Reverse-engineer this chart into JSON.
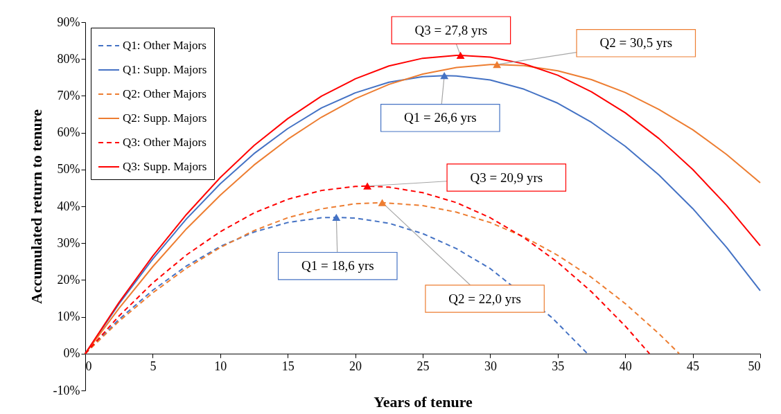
{
  "chart_data": {
    "type": "line",
    "xlabel": "Years of tenure",
    "ylabel": "Accumulated return to tenure",
    "xlim": [
      0,
      50
    ],
    "xticks": [
      0,
      5,
      10,
      15,
      20,
      25,
      30,
      35,
      40,
      45,
      50
    ],
    "ylim": [
      -10,
      90
    ],
    "yticks": [
      {
        "value": -10,
        "label": "-10%"
      },
      {
        "value": 0,
        "label": "0%"
      },
      {
        "value": 10,
        "label": "10%"
      },
      {
        "value": 20,
        "label": "20%"
      },
      {
        "value": 30,
        "label": "30%"
      },
      {
        "value": 40,
        "label": "40%"
      },
      {
        "value": 50,
        "label": "50%"
      },
      {
        "value": 60,
        "label": "60%"
      },
      {
        "value": 70,
        "label": "70%"
      },
      {
        "value": 80,
        "label": "80%"
      },
      {
        "value": 90,
        "label": "90%"
      }
    ],
    "grid": false,
    "legend": "top left",
    "marker": "none",
    "series": [
      {
        "name": "Q1: Other Majors",
        "color": "#4472c4",
        "line_style": "dashed",
        "x": [
          0,
          2.5,
          5,
          7.5,
          10,
          12.5,
          15,
          17.5,
          18.6,
          20,
          22.5,
          25,
          27.5,
          30,
          34.5,
          35,
          37.2
        ],
        "values": [
          0,
          9.3,
          17.2,
          23.8,
          29.1,
          33.0,
          35.6,
          36.9,
          37,
          36.8,
          35.4,
          32.6,
          28.5,
          23.1,
          10.0,
          8.2,
          0
        ]
      },
      {
        "name": "Q1: Supp. Majors",
        "color": "#4472c4",
        "line_style": "solid",
        "x": [
          0,
          2.5,
          5,
          7.5,
          10,
          12.5,
          15,
          17.5,
          20,
          22.5,
          25,
          26.6,
          27.5,
          30,
          32.5,
          35,
          37.5,
          40,
          42.5,
          45,
          47.5,
          50
        ],
        "values": [
          0,
          13.5,
          25.7,
          36.6,
          46.1,
          54.3,
          61.1,
          66.7,
          70.8,
          73.7,
          75.2,
          75.5,
          75.4,
          74.3,
          71.8,
          68.0,
          62.8,
          56.3,
          48.5,
          39.4,
          28.9,
          17.1
        ]
      },
      {
        "name": "Q2: Other Majors",
        "color": "#ed7d31",
        "line_style": "dashed",
        "x": [
          0,
          2.5,
          5,
          7.5,
          10,
          12.5,
          15,
          17.5,
          20,
          22,
          25,
          27.5,
          30,
          32.5,
          35,
          37.5,
          40,
          42.5,
          44
        ],
        "values": [
          0,
          8.8,
          16.5,
          23.2,
          28.8,
          33.4,
          36.9,
          39.3,
          40.7,
          41,
          40.2,
          38.4,
          35.6,
          31.7,
          26.7,
          20.7,
          13.6,
          5.4,
          0
        ]
      },
      {
        "name": "Q2: Supp. Majors",
        "color": "#ed7d31",
        "line_style": "solid",
        "x": [
          0,
          2.5,
          5,
          7.5,
          10,
          12.5,
          15,
          17.5,
          20,
          22.5,
          25,
          27.5,
          30,
          30.5,
          32.5,
          35,
          37.5,
          40,
          42.5,
          45,
          47.5,
          50
        ],
        "values": [
          0,
          12.3,
          23.6,
          33.9,
          43.0,
          51.2,
          58.2,
          64.2,
          69.2,
          73.1,
          75.9,
          77.7,
          78.5,
          78.5,
          78.2,
          76.8,
          74.4,
          70.9,
          66.3,
          60.8,
          54.1,
          46.4
        ]
      },
      {
        "name": "Q3: Other Majors",
        "color": "#ff0000",
        "line_style": "dashed",
        "x": [
          0,
          2.5,
          5,
          7.5,
          10,
          12.5,
          15,
          17.5,
          20,
          20.9,
          22.5,
          25,
          27.5,
          30,
          32.5,
          35,
          37.5,
          40,
          41.8
        ],
        "values": [
          0,
          10.2,
          19.2,
          26.8,
          33.1,
          38.2,
          41.9,
          44.3,
          45.4,
          45.5,
          45.2,
          43.7,
          41.0,
          36.9,
          31.5,
          24.8,
          16.8,
          7.5,
          0
        ]
      },
      {
        "name": "Q3: Supp. Majors",
        "color": "#ff0000",
        "line_style": "solid",
        "x": [
          0,
          2.5,
          5,
          7.5,
          10,
          12.5,
          15,
          17.5,
          20,
          22.5,
          25,
          27.5,
          27.8,
          30,
          32.5,
          35,
          37.5,
          40,
          42.5,
          45,
          47.5,
          50
        ],
        "values": [
          0,
          13.9,
          26.5,
          37.8,
          47.8,
          56.5,
          63.8,
          69.9,
          74.6,
          78.1,
          80.2,
          81.0,
          81,
          80.5,
          78.7,
          75.6,
          71.1,
          65.4,
          58.4,
          50.0,
          40.3,
          29.3
        ]
      },
      {
        "type": "scatter",
        "marker": "triangle",
        "color": "#4472c4",
        "x": [
          18.6,
          26.6
        ],
        "values": [
          37,
          75.5
        ]
      },
      {
        "type": "scatter",
        "marker": "triangle",
        "color": "#ed7d31",
        "x": [
          22.0,
          30.5
        ],
        "values": [
          41,
          78.5
        ]
      },
      {
        "type": "scatter",
        "marker": "triangle",
        "color": "#ff0000",
        "x": [
          20.9,
          27.8
        ],
        "values": [
          45.5,
          81
        ]
      }
    ],
    "annotations": [
      {
        "text": "Q3 = 27,8 yrs",
        "x": 27.8,
        "y": 81
      },
      {
        "text": "Q2 = 30,5 yrs",
        "x": 30.5,
        "y": 78.5
      },
      {
        "text": "Q1 = 26,6 yrs",
        "x": 26.6,
        "y": 75.5
      },
      {
        "text": "Q3 = 20,9 yrs",
        "x": 20.9,
        "y": 45.5
      },
      {
        "text": "Q1 = 18,6 yrs",
        "x": 18.6,
        "y": 37
      },
      {
        "text": "Q2 = 22,0 yrs",
        "x": 22.0,
        "y": 41
      }
    ]
  }
}
